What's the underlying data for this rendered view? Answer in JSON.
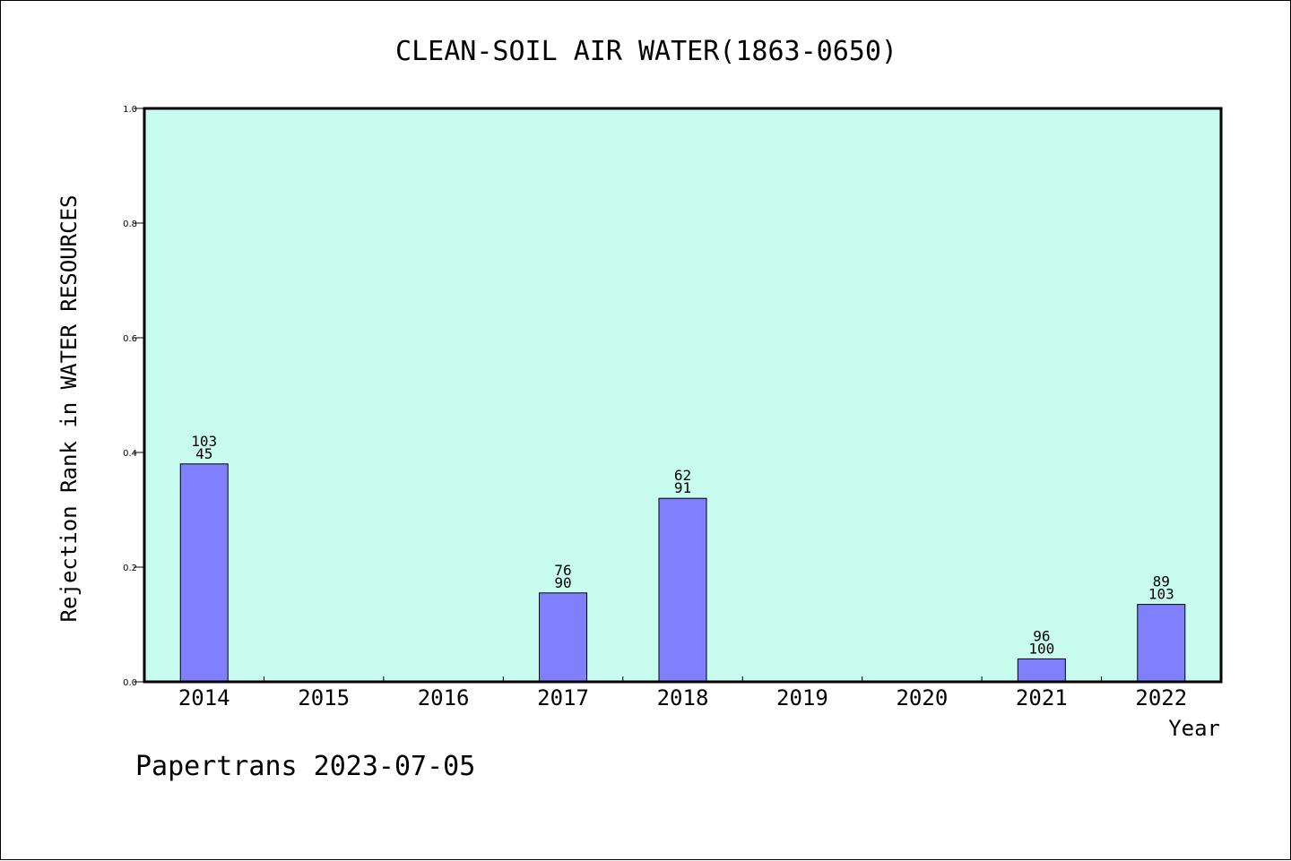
{
  "chart_data": {
    "type": "bar",
    "title": "CLEAN-SOIL AIR WATER(1863-0650)",
    "xlabel": "Year",
    "ylabel": "Rejection Rank in WATER RESOURCES",
    "ylim": [
      0,
      1.0
    ],
    "yticks": [
      "0.0",
      "0.2",
      "0.4",
      "0.6",
      "0.8",
      "1.0"
    ],
    "categories": [
      "2014",
      "2015",
      "2016",
      "2017",
      "2018",
      "2019",
      "2020",
      "2021",
      "2022"
    ],
    "values": [
      0.38,
      null,
      null,
      0.155,
      0.32,
      null,
      null,
      0.04,
      0.135
    ],
    "labels": [
      [
        "103",
        "45"
      ],
      null,
      null,
      [
        "76",
        "90"
      ],
      [
        "62",
        "91"
      ],
      null,
      null,
      [
        "96",
        "100"
      ],
      [
        "89",
        "103"
      ]
    ],
    "grid": false,
    "legend": "none",
    "colors": {
      "plot_background": "#c8fcee",
      "bar_fill": "#8080ff",
      "bar_stroke": "#000000"
    }
  },
  "footer": "Papertrans 2023-07-05"
}
